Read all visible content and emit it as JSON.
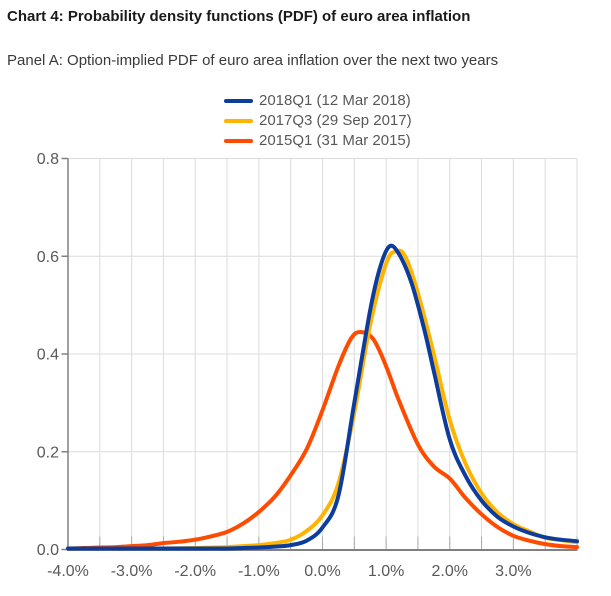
{
  "header": {
    "title": "Chart 4: Probability density functions (PDF) of euro area inflation",
    "subtitle": "Panel A: Option-implied PDF of euro area inflation over the next two years"
  },
  "legend": {
    "position": "top-center",
    "items": [
      {
        "label": "2018Q1 (12 Mar 2018)",
        "color": "#0d3d9c"
      },
      {
        "label": "2017Q3 (29 Sep 2017)",
        "color": "#ffb400"
      },
      {
        "label": "2015Q1 (31 Mar 2015)",
        "color": "#ff4b00"
      }
    ]
  },
  "colors": {
    "background": "#ffffff",
    "axis": "#808080",
    "gridline": "#dcdcdc",
    "minor_tick": "#a9a9a9",
    "tick_label": "#595959",
    "title_text": "#1a1a1a",
    "subtitle_text": "#3a3a3a"
  },
  "chart_data": {
    "type": "line",
    "title": "Chart 4: Probability density functions (PDF) of euro area inflation",
    "subtitle": "Panel A: Option-implied PDF of euro area inflation over the next two years",
    "xlabel": "",
    "ylabel": "",
    "xlim": [
      -4,
      4
    ],
    "ylim": [
      0,
      0.8
    ],
    "grid": {
      "on": true,
      "x_step": 0.5,
      "y_step": 0.2
    },
    "legend_position": "top",
    "x_tick_values": [
      -4,
      -3,
      -2,
      -1,
      0,
      1,
      2,
      3
    ],
    "x_tick_labels": [
      "-4.0%",
      "-3.0%",
      "-2.0%",
      "-1.0%",
      "0.0%",
      "1.0%",
      "2.0%",
      "3.0%"
    ],
    "x_minor_tick_step": 0.5,
    "y_tick_values": [
      0,
      0.2,
      0.4,
      0.6,
      0.8
    ],
    "y_tick_labels": [
      "0.0",
      "0.2",
      "0.4",
      "0.6",
      "0.8"
    ],
    "series": [
      {
        "name": "2018Q1 (12 Mar 2018)",
        "color": "#0d3d9c",
        "peak": {
          "x": 1.05,
          "y": 0.62
        },
        "points": [
          [
            -4,
            0.0
          ],
          [
            -3.5,
            0.0
          ],
          [
            -3,
            0.001
          ],
          [
            -2.5,
            0.001
          ],
          [
            -2,
            0.001
          ],
          [
            -1.5,
            0.002
          ],
          [
            -1.25,
            0.003
          ],
          [
            -1,
            0.004
          ],
          [
            -0.75,
            0.006
          ],
          [
            -0.5,
            0.009
          ],
          [
            -0.25,
            0.018
          ],
          [
            0,
            0.045
          ],
          [
            0.25,
            0.11
          ],
          [
            0.5,
            0.3
          ],
          [
            0.75,
            0.49
          ],
          [
            0.9,
            0.575
          ],
          [
            1.05,
            0.62
          ],
          [
            1.2,
            0.605
          ],
          [
            1.4,
            0.545
          ],
          [
            1.6,
            0.45
          ],
          [
            1.75,
            0.365
          ],
          [
            2,
            0.225
          ],
          [
            2.25,
            0.15
          ],
          [
            2.5,
            0.1
          ],
          [
            2.75,
            0.067
          ],
          [
            3,
            0.047
          ],
          [
            3.25,
            0.034
          ],
          [
            3.5,
            0.025
          ],
          [
            3.75,
            0.02
          ],
          [
            4,
            0.017
          ]
        ]
      },
      {
        "name": "2017Q3 (29 Sep 2017)",
        "color": "#ffb400",
        "peak": {
          "x": 1.15,
          "y": 0.61
        },
        "points": [
          [
            -4,
            0.0
          ],
          [
            -3.5,
            0.0
          ],
          [
            -3,
            0.001
          ],
          [
            -2.5,
            0.002
          ],
          [
            -2,
            0.003
          ],
          [
            -1.75,
            0.004
          ],
          [
            -1.5,
            0.005
          ],
          [
            -1.25,
            0.007
          ],
          [
            -1,
            0.009
          ],
          [
            -0.75,
            0.013
          ],
          [
            -0.5,
            0.02
          ],
          [
            -0.25,
            0.038
          ],
          [
            0,
            0.07
          ],
          [
            0.25,
            0.135
          ],
          [
            0.5,
            0.28
          ],
          [
            0.75,
            0.46
          ],
          [
            1,
            0.585
          ],
          [
            1.15,
            0.61
          ],
          [
            1.3,
            0.6
          ],
          [
            1.5,
            0.525
          ],
          [
            1.75,
            0.4
          ],
          [
            2,
            0.265
          ],
          [
            2.25,
            0.175
          ],
          [
            2.5,
            0.115
          ],
          [
            2.75,
            0.076
          ],
          [
            3,
            0.052
          ],
          [
            3.25,
            0.037
          ],
          [
            3.5,
            0.024
          ],
          [
            3.75,
            0.019
          ],
          [
            4,
            0.015
          ]
        ]
      },
      {
        "name": "2015Q1 (31 Mar 2015)",
        "color": "#ff4b00",
        "peak": {
          "x": 0.6,
          "y": 0.445
        },
        "points": [
          [
            -4,
            0.002
          ],
          [
            -3.75,
            0.003
          ],
          [
            -3.5,
            0.004
          ],
          [
            -3.25,
            0.005
          ],
          [
            -3,
            0.007
          ],
          [
            -2.75,
            0.009
          ],
          [
            -2.5,
            0.013
          ],
          [
            -2.25,
            0.016
          ],
          [
            -2,
            0.02
          ],
          [
            -1.75,
            0.027
          ],
          [
            -1.5,
            0.036
          ],
          [
            -1.25,
            0.053
          ],
          [
            -1,
            0.077
          ],
          [
            -0.75,
            0.108
          ],
          [
            -0.5,
            0.152
          ],
          [
            -0.25,
            0.205
          ],
          [
            0,
            0.285
          ],
          [
            0.25,
            0.375
          ],
          [
            0.45,
            0.432
          ],
          [
            0.6,
            0.445
          ],
          [
            0.8,
            0.43
          ],
          [
            1,
            0.375
          ],
          [
            1.2,
            0.305
          ],
          [
            1.5,
            0.215
          ],
          [
            1.75,
            0.17
          ],
          [
            2,
            0.145
          ],
          [
            2.25,
            0.105
          ],
          [
            2.5,
            0.072
          ],
          [
            2.75,
            0.046
          ],
          [
            3,
            0.028
          ],
          [
            3.25,
            0.018
          ],
          [
            3.5,
            0.011
          ],
          [
            3.75,
            0.007
          ],
          [
            4,
            0.005
          ]
        ]
      }
    ]
  }
}
